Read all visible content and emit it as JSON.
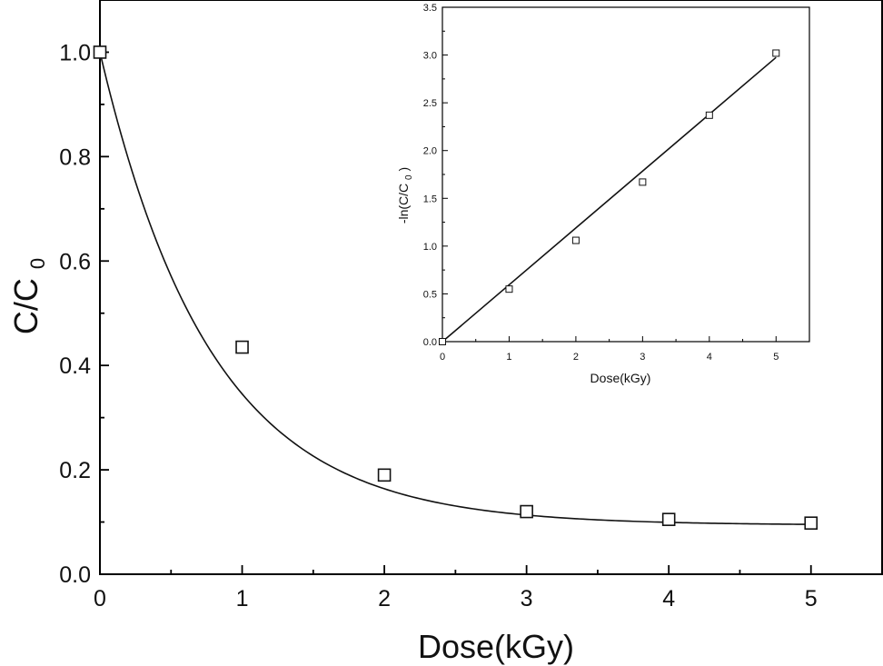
{
  "chart_data": [
    {
      "type": "scatter",
      "title": "",
      "xlabel": "Dose(kGy)",
      "ylabel": {
        "main": "C/C",
        "subscript": "0"
      },
      "xlim": [
        0,
        5.5
      ],
      "ylim": [
        0,
        1.1
      ],
      "xticks": [
        0,
        1,
        2,
        3,
        4,
        5
      ],
      "yticks": [
        0.0,
        0.2,
        0.4,
        0.6,
        0.8,
        1.0
      ],
      "xtick_labels": [
        "0",
        "1",
        "2",
        "3",
        "4",
        "5"
      ],
      "ytick_labels": [
        "0.0",
        "0.2",
        "0.4",
        "0.6",
        "0.8",
        "1.0"
      ],
      "grid": false,
      "series": [
        {
          "x": [
            0,
            1,
            2,
            3,
            4,
            5
          ],
          "y": [
            1.0,
            0.435,
            0.19,
            0.12,
            0.105,
            0.098
          ]
        }
      ],
      "fit_curve": {
        "form": "y0 + A*exp(-x/t)",
        "y0": 0.094,
        "A": 0.906,
        "t": 0.78
      }
    },
    {
      "type": "scatter",
      "title": "",
      "xlabel": "Dose(kGy)",
      "ylabel": {
        "main": "-ln(C/C",
        "subscript": "0",
        "suffix": ")"
      },
      "xlim": [
        0,
        5.5
      ],
      "ylim": [
        0,
        3.5
      ],
      "xticks": [
        0,
        1,
        2,
        3,
        4,
        5
      ],
      "yticks": [
        0.0,
        0.5,
        1.0,
        1.5,
        2.0,
        2.5,
        3.0,
        3.5
      ],
      "xtick_labels": [
        "0",
        "1",
        "2",
        "3",
        "4",
        "5"
      ],
      "ytick_labels": [
        "0.0",
        "0.5",
        "1.0",
        "1.5",
        "2.0",
        "2.5",
        "3.0",
        "3.5"
      ],
      "grid": false,
      "series": [
        {
          "x": [
            0,
            1,
            2,
            3,
            4,
            5
          ],
          "y": [
            0.0,
            0.55,
            1.06,
            1.67,
            2.37,
            3.02
          ]
        }
      ],
      "fit_line": {
        "slope": 0.595,
        "intercept": 0.0,
        "x_range": [
          0,
          5
        ]
      }
    }
  ]
}
